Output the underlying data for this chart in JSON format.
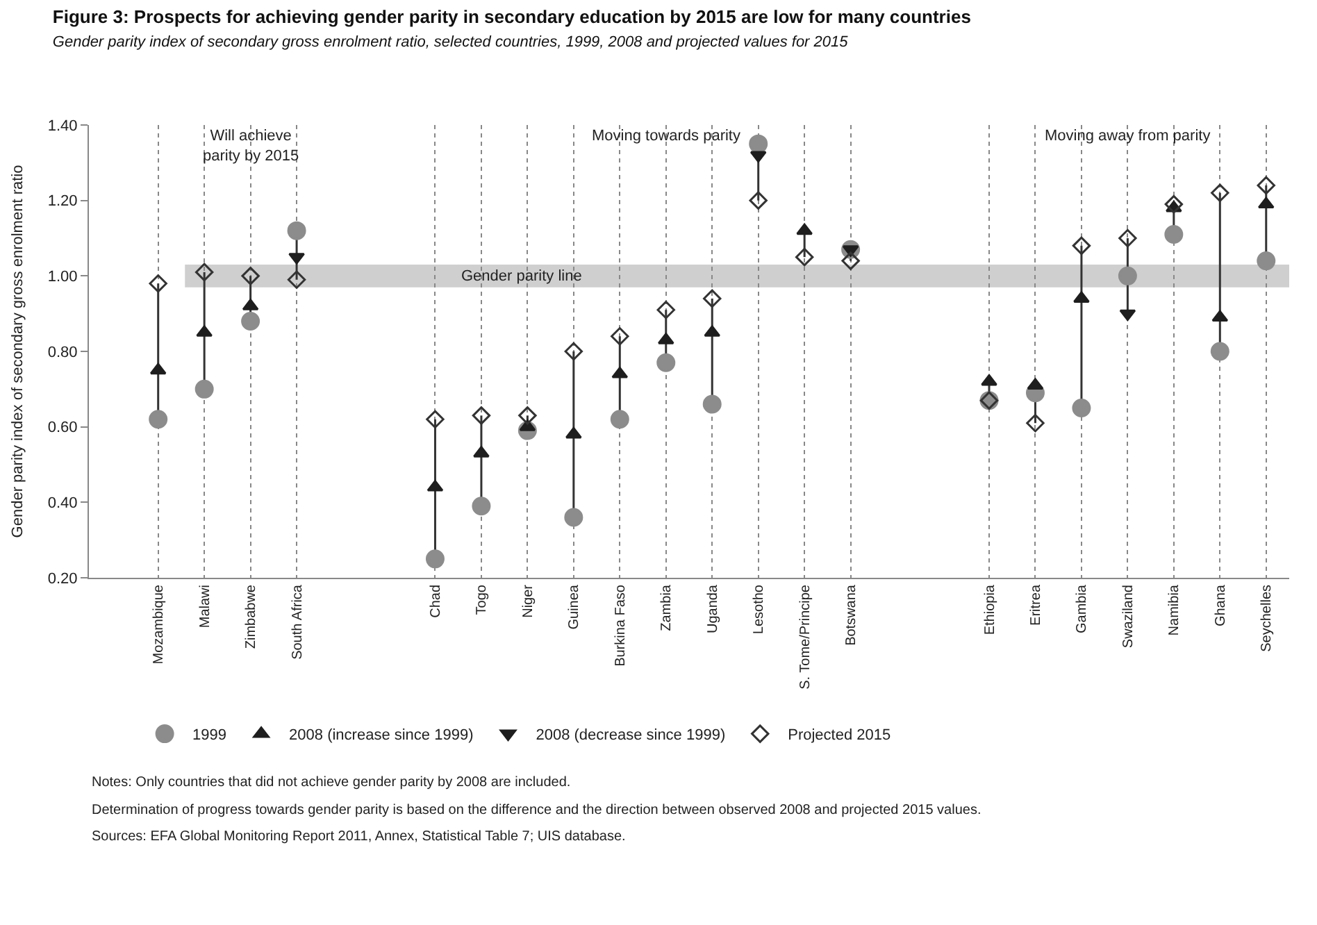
{
  "chart_data": {
    "type": "scatter",
    "title": "Figure 3: Prospects for achieving gender parity in secondary education by 2015 are low for many countries",
    "subtitle": "Gender parity index of secondary gross enrolment ratio, selected countries, 1999, 2008 and projected values for 2015",
    "ylabel": "Gender parity index of secondary gross enrolment ratio",
    "categories": [
      "Mozambique",
      "Malawi",
      "Zimbabwe",
      "South Africa",
      null,
      null,
      "Chad",
      "Togo",
      "Niger",
      "Guinea",
      "Burkina Faso",
      "Zambia",
      "Uganda",
      "Lesotho",
      "S. Tome/Principe",
      "Botswana",
      null,
      null,
      "Ethiopia",
      "Eritrea",
      "Gambia",
      "Swaziland",
      "Namibia",
      "Ghana",
      "Seychelles"
    ],
    "series": [
      {
        "name": "1999",
        "color": "#8c8c8c",
        "marker": "circle",
        "values": [
          0.62,
          0.7,
          0.88,
          1.12,
          null,
          null,
          0.25,
          0.39,
          0.59,
          0.36,
          0.62,
          0.77,
          0.66,
          1.35,
          null,
          1.07,
          null,
          null,
          0.67,
          0.69,
          0.65,
          1.0,
          1.11,
          0.8,
          1.04
        ]
      },
      {
        "name": "2008 (increase since 1999)",
        "color": "#1e1e1e",
        "marker": "triangle",
        "values": [
          0.75,
          0.85,
          0.92,
          null,
          null,
          null,
          0.44,
          0.53,
          0.6,
          0.58,
          0.74,
          0.83,
          0.85,
          null,
          1.12,
          null,
          null,
          null,
          0.72,
          0.71,
          0.94,
          null,
          1.18,
          0.89,
          1.19
        ]
      },
      {
        "name": "2008 (decrease since 1999)",
        "color": "#1e1e1e",
        "marker": "triangle-down",
        "values": [
          null,
          null,
          null,
          1.05,
          null,
          null,
          null,
          null,
          null,
          null,
          null,
          null,
          null,
          1.32,
          null,
          1.07,
          null,
          null,
          null,
          null,
          null,
          0.9,
          null,
          null,
          null
        ]
      },
      {
        "name": "Projected 2015",
        "color": "#333333",
        "marker": "diamond",
        "values": [
          0.98,
          1.01,
          1.0,
          0.99,
          null,
          null,
          0.62,
          0.63,
          0.63,
          0.8,
          0.84,
          0.91,
          0.94,
          1.2,
          1.05,
          1.04,
          null,
          null,
          0.67,
          0.61,
          1.08,
          1.1,
          1.19,
          1.22,
          1.24
        ]
      }
    ],
    "ylim": [
      0.2,
      1.4
    ],
    "yticks": [
      {
        "value": 0.2,
        "label": "0.20"
      },
      {
        "value": 0.4,
        "label": "0.40"
      },
      {
        "value": 0.6,
        "label": "0.60"
      },
      {
        "value": 0.8,
        "label": "0.80"
      },
      {
        "value": 1.0,
        "label": "1.00"
      },
      {
        "value": 1.2,
        "label": "1.20"
      },
      {
        "value": 1.4,
        "label": "1.40"
      }
    ],
    "bands": [
      {
        "axis": "y",
        "from": 0.97,
        "to": 1.03,
        "label": "Gender parity line",
        "color": "#cfcfcf"
      }
    ],
    "annotations": [
      "Will achieve\nparity by 2015",
      "Moving towards parity",
      "Moving away from parity",
      "Notes: Only countries that did not achieve gender parity by 2008 are included.",
      "Determination of progress towards gender parity is based on the difference and the direction between observed 2008 and projected 2015 values.",
      "Sources: EFA Global Monitoring Report 2011, Annex, Statistical Table 7; UIS database."
    ],
    "grid": "x",
    "legend": "bottom left"
  }
}
